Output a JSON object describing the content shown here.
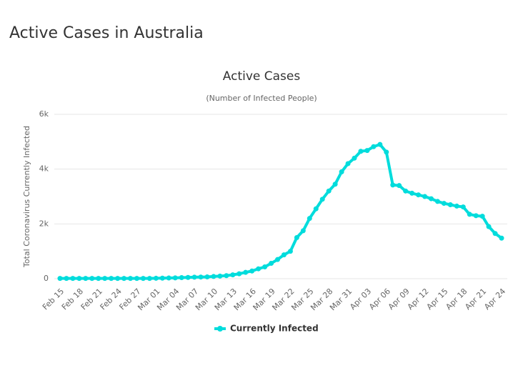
{
  "header": {
    "title": "Active Cases in Australia"
  },
  "chart_data": {
    "type": "line",
    "title": "Active Cases",
    "subtitle": "(Number of Infected People)",
    "y_label": "Total Coronavirus Currently Infected",
    "categories": [
      "Feb 15",
      null,
      null,
      "Feb 18",
      null,
      null,
      "Feb 21",
      null,
      null,
      "Feb 24",
      null,
      null,
      "Feb 27",
      null,
      null,
      "Mar 01",
      null,
      null,
      "Mar 04",
      null,
      null,
      "Mar 07",
      null,
      null,
      "Mar 10",
      null,
      null,
      "Mar 13",
      null,
      null,
      "Mar 16",
      null,
      null,
      "Mar 19",
      null,
      null,
      "Mar 22",
      null,
      null,
      "Mar 25",
      null,
      null,
      "Mar 28",
      null,
      null,
      "Mar 31",
      null,
      null,
      "Apr 03",
      null,
      null,
      "Apr 06",
      null,
      null,
      "Apr 09",
      null,
      null,
      "Apr 12",
      null,
      null,
      "Apr 15",
      null,
      null,
      "Apr 18",
      null,
      null,
      "Apr 21",
      null,
      null,
      "Apr 24"
    ],
    "series": [
      {
        "name": "Currently Infected",
        "color": "#00dcdc",
        "values": [
          10,
          10,
          10,
          10,
          10,
          10,
          10,
          10,
          10,
          10,
          10,
          10,
          10,
          10,
          10,
          15,
          20,
          25,
          30,
          40,
          45,
          55,
          60,
          65,
          80,
          95,
          110,
          140,
          180,
          230,
          280,
          360,
          430,
          560,
          700,
          870,
          1000,
          1500,
          1750,
          2200,
          2550,
          2900,
          3200,
          3450,
          3900,
          4200,
          4400,
          4650,
          4680,
          4820,
          4900,
          4620,
          3420,
          3400,
          3200,
          3120,
          3060,
          3000,
          2920,
          2820,
          2750,
          2700,
          2650,
          2620,
          2350,
          2300,
          2280,
          1900,
          1650,
          1480
        ]
      }
    ],
    "ylim": [
      0,
      6000
    ],
    "yticks": [
      0,
      {
        "value": 2000,
        "label": "2k"
      },
      {
        "value": 4000,
        "label": "4k"
      },
      {
        "value": 6000,
        "label": "6k"
      }
    ],
    "grid": true
  }
}
